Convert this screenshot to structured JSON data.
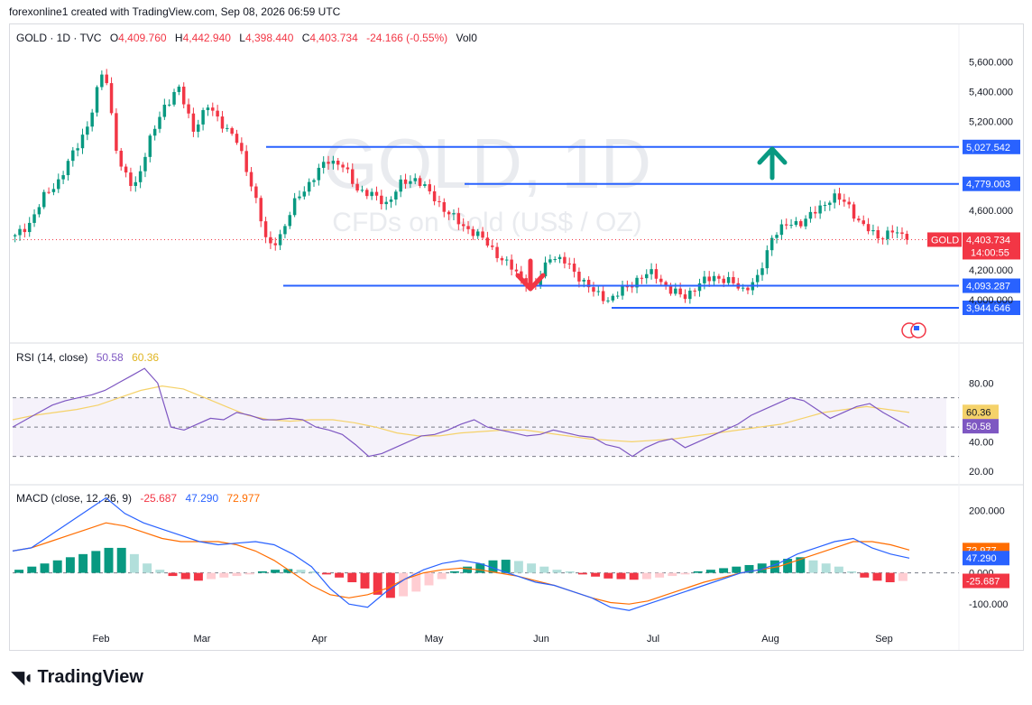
{
  "header": {
    "text": "forexonline1 created with TradingView.com, Sep 08, 2026 06:59 UTC"
  },
  "brand": {
    "name": "TradingView",
    "logo_icon": "tradingview-logo-icon"
  },
  "legend": {
    "symbol": "GOLD · 1D · TVC",
    "open_label": "O",
    "open": "4,409.760",
    "high_label": "H",
    "high": "4,442.940",
    "low_label": "L",
    "low": "4,398.440",
    "close_label": "C",
    "close": "4,403.734",
    "change": "-24.166 (-0.55%)",
    "vol": "Vol0"
  },
  "watermark": {
    "title": "GOLD, 1D",
    "subtitle": "CFDs on Gold (US$ / OZ)"
  },
  "colors": {
    "up": "#089981",
    "down": "#f23645",
    "level": "#2962ff",
    "rsi": "#7e57c2",
    "rsi_ma": "#f5d26a",
    "macd": "#2962ff",
    "signal": "#ff6d00"
  },
  "chart_data": [
    {
      "type": "candlestick",
      "x_axis_labels": [
        "Feb",
        "Mar",
        "Apr",
        "May",
        "Jun",
        "Jul",
        "Aug",
        "Sep"
      ],
      "y_axis_labels": [
        "5,600.000",
        "5,400.000",
        "5,200.000",
        "4,600.000",
        "4,200.000",
        "4,000.000"
      ],
      "ylim": [
        3890,
        5640
      ],
      "pivots": [
        4420,
        4520,
        4700,
        4810,
        5000,
        5200,
        5580,
        4900,
        4750,
        5050,
        5300,
        5420,
        5150,
        5300,
        5180,
        5050,
        4750,
        4350,
        4450,
        4700,
        4800,
        4950,
        4900,
        4750,
        4700,
        4650,
        4780,
        4820,
        4700,
        4600,
        4500,
        4450,
        4350,
        4250,
        4150,
        4080,
        4300,
        4250,
        4150,
        4040,
        4000,
        4070,
        4150,
        4180,
        4060,
        4020,
        4100,
        4160,
        4120,
        4070,
        4140,
        4450,
        4500,
        4530,
        4600,
        4700,
        4640,
        4500,
        4420,
        4460,
        4404
      ],
      "levels": [
        {
          "value": 5027.542,
          "label": "5,027.542"
        },
        {
          "value": 4779.003,
          "label": "4,779.003"
        },
        {
          "value": 4093.287,
          "label": "4,093.287"
        },
        {
          "value": 3944.646,
          "label": "3,944.646"
        }
      ],
      "last_price": {
        "symbol": "GOLD",
        "value": "4,403.734",
        "countdown": "14:00:55"
      },
      "annotations": [
        "up-arrow",
        "down-arrow"
      ]
    },
    {
      "type": "line",
      "title": "RSI (14, close)",
      "values_text": [
        "50.58",
        "60.36"
      ],
      "y_axis_labels": [
        "80.00",
        "40.00",
        "20.00"
      ],
      "ylim": [
        15,
        95
      ],
      "bands": [
        70,
        30,
        50
      ],
      "rsi": [
        50,
        55,
        60,
        65,
        68,
        70,
        72,
        75,
        80,
        85,
        90,
        80,
        50,
        48,
        52,
        56,
        55,
        60,
        58,
        55,
        55,
        56,
        55,
        50,
        48,
        45,
        38,
        30,
        32,
        36,
        40,
        44,
        45,
        48,
        52,
        55,
        50,
        48,
        46,
        44,
        45,
        48,
        46,
        44,
        43,
        38,
        36,
        30,
        36,
        40,
        42,
        36,
        40,
        44,
        48,
        52,
        58,
        62,
        66,
        70,
        68,
        62,
        56,
        60,
        64,
        66,
        60,
        55,
        50
      ],
      "rsi_ma": [
        55,
        58,
        60,
        62,
        65,
        70,
        75,
        78,
        76,
        70,
        64,
        58,
        55,
        54,
        55,
        55,
        53,
        50,
        46,
        44,
        44,
        46,
        47,
        48,
        48,
        46,
        44,
        42,
        41,
        40,
        41,
        42,
        44,
        46,
        48,
        50,
        52,
        56,
        60,
        62,
        64,
        62,
        60
      ],
      "last": {
        "rsi": "50.58",
        "rsi_ma": "60.36"
      }
    },
    {
      "type": "bar",
      "title": "MACD (close, 12, 26, 9)",
      "values_text": [
        "-25.687",
        "47.290",
        "72.977"
      ],
      "y_axis_labels": [
        "200.000",
        "0.000",
        "-100.000"
      ],
      "ylim": [
        -160,
        230
      ],
      "histogram": [
        10,
        20,
        30,
        40,
        50,
        60,
        70,
        80,
        80,
        60,
        30,
        10,
        -10,
        -20,
        -25,
        -20,
        -15,
        -10,
        -5,
        5,
        10,
        12,
        10,
        5,
        -5,
        -15,
        -30,
        -50,
        -70,
        -80,
        -75,
        -60,
        -40,
        -20,
        5,
        20,
        30,
        40,
        42,
        38,
        30,
        20,
        10,
        5,
        -5,
        -12,
        -18,
        -20,
        -22,
        -20,
        -15,
        -10,
        -5,
        5,
        10,
        15,
        20,
        25,
        30,
        40,
        45,
        50,
        40,
        30,
        20,
        5,
        -15,
        -25,
        -30,
        -26
      ],
      "macd": [
        70,
        80,
        120,
        160,
        200,
        240,
        190,
        160,
        140,
        120,
        100,
        90,
        95,
        100,
        90,
        60,
        20,
        -50,
        -100,
        -110,
        -60,
        -20,
        10,
        30,
        40,
        30,
        10,
        -10,
        -30,
        -40,
        -60,
        -80,
        -110,
        -120,
        -100,
        -80,
        -60,
        -40,
        -20,
        0,
        10,
        30,
        60,
        80,
        100,
        110,
        80,
        60,
        47
      ],
      "signal": [
        70,
        80,
        100,
        120,
        140,
        160,
        150,
        130,
        110,
        100,
        100,
        100,
        90,
        70,
        40,
        0,
        -40,
        -70,
        -80,
        -70,
        -50,
        -20,
        0,
        10,
        15,
        10,
        0,
        -10,
        -25,
        -40,
        -60,
        -80,
        -95,
        -100,
        -90,
        -70,
        -50,
        -30,
        -15,
        0,
        10,
        20,
        40,
        60,
        80,
        100,
        100,
        90,
        73
      ],
      "last": {
        "macd": "47.290",
        "signal": "72.977",
        "histogram": "-25.687"
      }
    }
  ]
}
